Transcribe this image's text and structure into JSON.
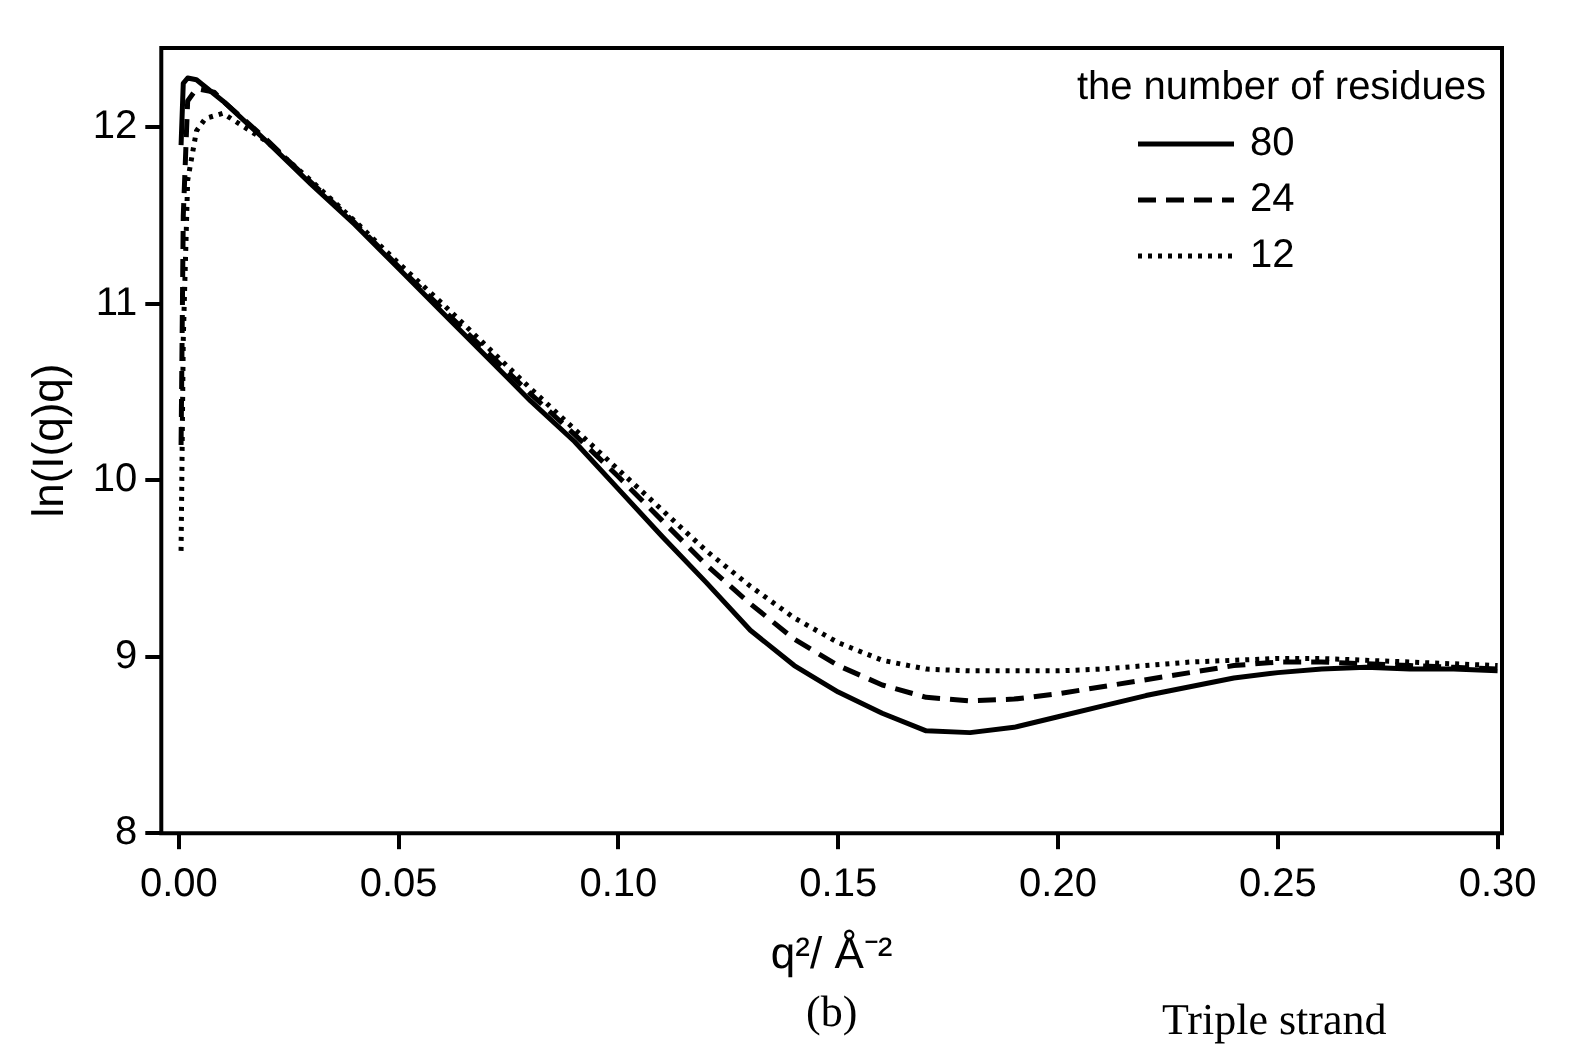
{
  "chart_data": {
    "type": "line",
    "xlabel": "q²/ Å⁻²",
    "ylabel": "ln(I(q)q)",
    "legend_title": "the number of residues",
    "legend": "top right",
    "grid": false,
    "marker": "none",
    "xlim": [
      -0.004,
      0.301
    ],
    "ylim": [
      8,
      12.45
    ],
    "xticks": [
      {
        "value": 0,
        "label": "0.00"
      },
      {
        "value": 0.05,
        "label": "0.05"
      },
      {
        "value": 0.1,
        "label": "0.10"
      },
      {
        "value": 0.15,
        "label": "0.15"
      },
      {
        "value": 0.2,
        "label": "0.20"
      },
      {
        "value": 0.25,
        "label": "0.25"
      },
      {
        "value": 0.3,
        "label": "0.30"
      }
    ],
    "yticks": [
      8,
      9,
      10,
      11,
      12
    ],
    "annotations": [
      "(b)",
      "Triple strand"
    ],
    "series": [
      {
        "name": "80",
        "color": "#000000",
        "line_style": "solid",
        "x": [
          0.0005,
          0.001,
          0.002,
          0.004,
          0.01,
          0.02,
          0.03,
          0.04,
          0.05,
          0.06,
          0.07,
          0.08,
          0.09,
          0.1,
          0.11,
          0.12,
          0.13,
          0.14,
          0.15,
          0.16,
          0.17,
          0.18,
          0.19,
          0.2,
          0.21,
          0.22,
          0.23,
          0.24,
          0.25,
          0.26,
          0.27,
          0.28,
          0.29,
          0.3
        ],
        "values": [
          11.9,
          12.25,
          12.28,
          12.27,
          12.15,
          11.92,
          11.68,
          11.45,
          11.2,
          10.95,
          10.7,
          10.45,
          10.22,
          9.95,
          9.68,
          9.42,
          9.15,
          8.95,
          8.8,
          8.68,
          8.58,
          8.57,
          8.6,
          8.66,
          8.72,
          8.78,
          8.83,
          8.88,
          8.91,
          8.93,
          8.94,
          8.93,
          8.93,
          8.92
        ]
      },
      {
        "name": "24",
        "color": "#000000",
        "line_style": "dashed",
        "x": [
          0.0005,
          0.001,
          0.002,
          0.004,
          0.008,
          0.01,
          0.02,
          0.03,
          0.04,
          0.05,
          0.06,
          0.07,
          0.08,
          0.09,
          0.1,
          0.11,
          0.12,
          0.13,
          0.14,
          0.15,
          0.16,
          0.17,
          0.18,
          0.19,
          0.2,
          0.21,
          0.22,
          0.23,
          0.24,
          0.25,
          0.26,
          0.27,
          0.28,
          0.29,
          0.3
        ],
        "values": [
          10.2,
          11.5,
          12.15,
          12.22,
          12.2,
          12.15,
          11.93,
          11.69,
          11.46,
          11.21,
          10.97,
          10.73,
          10.49,
          10.26,
          10.02,
          9.77,
          9.52,
          9.3,
          9.1,
          8.95,
          8.84,
          8.77,
          8.75,
          8.76,
          8.79,
          8.83,
          8.87,
          8.91,
          8.95,
          8.97,
          8.97,
          8.96,
          8.95,
          8.94,
          8.93
        ]
      },
      {
        "name": "12",
        "color": "#000000",
        "line_style": "dotted",
        "x": [
          0.0005,
          0.001,
          0.002,
          0.004,
          0.006,
          0.01,
          0.02,
          0.03,
          0.04,
          0.05,
          0.06,
          0.07,
          0.08,
          0.09,
          0.1,
          0.11,
          0.12,
          0.13,
          0.14,
          0.15,
          0.16,
          0.17,
          0.18,
          0.19,
          0.2,
          0.21,
          0.22,
          0.23,
          0.24,
          0.25,
          0.26,
          0.27,
          0.28,
          0.29,
          0.3
        ],
        "values": [
          9.6,
          10.8,
          11.7,
          11.98,
          12.05,
          12.08,
          11.92,
          11.7,
          11.47,
          11.23,
          11.0,
          10.76,
          10.52,
          10.29,
          10.06,
          9.83,
          9.6,
          9.4,
          9.22,
          9.08,
          8.98,
          8.93,
          8.92,
          8.92,
          8.92,
          8.93,
          8.95,
          8.97,
          8.98,
          8.99,
          8.99,
          8.98,
          8.97,
          8.96,
          8.95
        ]
      }
    ]
  }
}
